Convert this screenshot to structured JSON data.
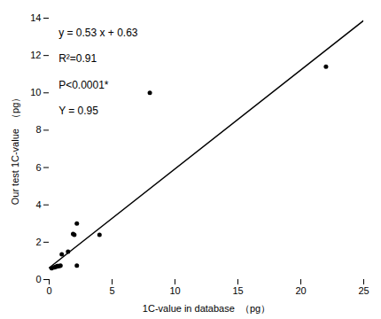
{
  "chart_data": {
    "type": "scatter",
    "xlabel": "1C-value in database  （pg）",
    "ylabel": "Our test 1C-value  （pg）",
    "series": [
      {
        "type": "scatter",
        "color": "#000000",
        "x": [
          0.2,
          0.4,
          0.5,
          0.6,
          0.65,
          0.7,
          0.8,
          0.9,
          1.0,
          1.5,
          1.9,
          2.0,
          2.2,
          4.0,
          2.2,
          8.0,
          22.0
        ],
        "values": [
          0.6,
          0.65,
          0.68,
          0.7,
          0.72,
          0.72,
          0.72,
          0.75,
          1.35,
          1.5,
          2.45,
          2.4,
          3.0,
          2.4,
          0.75,
          10.0,
          11.4
        ]
      },
      {
        "type": "line",
        "color": "#000000",
        "x": [
          0,
          25
        ],
        "values": [
          0.63,
          13.88
        ]
      }
    ],
    "annotations": [
      "y = 0.53 x + 0.63",
      "R²=0.91",
      "P<0.0001*",
      "Υ = 0.95"
    ],
    "xlim": [
      0,
      25
    ],
    "ylim": [
      0,
      14
    ],
    "xticks": [
      0,
      5,
      10,
      15,
      20,
      25
    ],
    "yticks": [
      0,
      2,
      4,
      6,
      8,
      10,
      12,
      14
    ],
    "grid": false
  }
}
